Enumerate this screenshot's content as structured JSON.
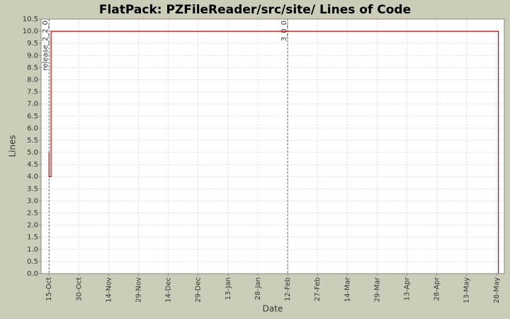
{
  "chart_data": {
    "type": "step",
    "title": "FlatPack: PZFileReader/src/site/ Lines of Code",
    "x_label": "Date",
    "y_label": "Lines",
    "series": [
      {
        "name": "Lines",
        "color": "#cc0000",
        "x": [
          "15-Oct",
          "15-Oct",
          "16-Oct",
          "29-May"
        ],
        "values": [
          5,
          4,
          10,
          0
        ]
      }
    ],
    "xlim": [
      "11-Oct",
      "1-Jun"
    ],
    "xticks": [
      "15-Oct",
      "30-Oct",
      "14-Nov",
      "29-Nov",
      "14-Dec",
      "29-Dec",
      "13-Jan",
      "28-Jan",
      "12-Feb",
      "27-Feb",
      "14-Mar",
      "29-Mar",
      "13-Apr",
      "28-Apr",
      "13-May",
      "28-May"
    ],
    "ylim": [
      0,
      10.5
    ],
    "yticks": [
      {
        "value": 0,
        "label": "0.0"
      },
      0.5,
      {
        "value": 1,
        "label": "1.0"
      },
      1.5,
      {
        "value": 2,
        "label": "2.0"
      },
      2.5,
      {
        "value": 3,
        "label": "3.0"
      },
      3.5,
      {
        "value": 4,
        "label": "4.0"
      },
      4.5,
      {
        "value": 5,
        "label": "5.0"
      },
      5.5,
      {
        "value": 6,
        "label": "6.0"
      },
      6.5,
      {
        "value": 7,
        "label": "7.0"
      },
      7.5,
      {
        "value": 8,
        "label": "8.0"
      },
      8.5,
      {
        "value": 9,
        "label": "9.0"
      },
      9.5,
      {
        "value": 10,
        "label": "10.0"
      },
      10.5
    ],
    "annotations": [
      {
        "label": "release_2_2_0",
        "x": "15-Oct"
      },
      {
        "label": "3_0_0",
        "x": "12-Feb"
      }
    ],
    "grid": true
  }
}
